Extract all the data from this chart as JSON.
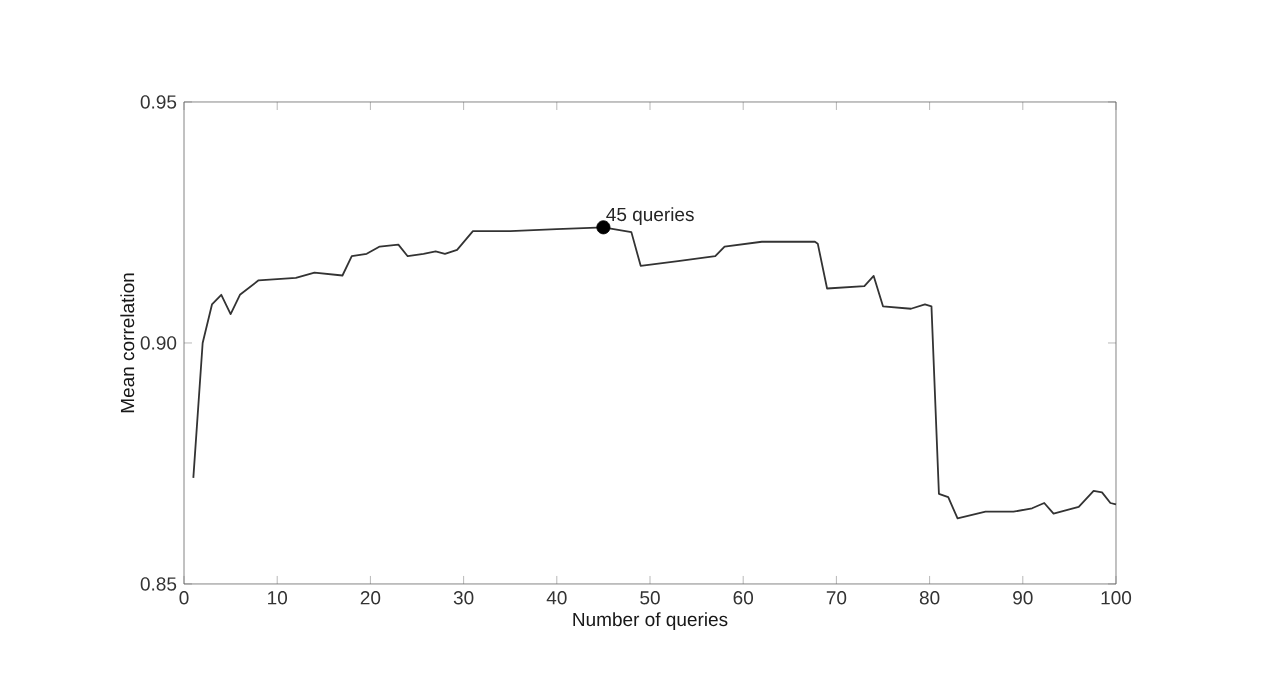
{
  "chart_data": {
    "type": "line",
    "xlabel": "Number of queries",
    "ylabel": "Mean correlation",
    "xlim": [
      0,
      100
    ],
    "xticks": [
      0,
      10,
      20,
      30,
      40,
      50,
      60,
      70,
      80,
      90,
      100
    ],
    "ylim": [
      0.85,
      0.95
    ],
    "yticks": [
      0.85,
      {
        "value": 0.9,
        "label": "0.90"
      },
      0.95
    ],
    "line_style": "solid",
    "annotations": [
      {
        "text": "45 queries",
        "x": 45,
        "y": 0.924
      }
    ],
    "series": [
      {
        "marker": "none",
        "color": "#333333",
        "x": [
          1,
          2,
          3,
          4,
          5,
          6,
          8,
          12,
          14,
          17,
          18,
          19.6,
          21,
          23,
          24,
          25.7,
          27,
          28,
          29.3,
          31,
          35,
          40,
          45,
          48,
          49,
          53,
          55,
          57,
          58,
          62,
          67.7,
          68,
          69,
          73,
          74,
          75,
          78,
          79.5,
          80.2,
          81,
          82,
          83,
          86,
          89,
          91,
          92.3,
          93.3,
          96,
          97.6,
          98.5,
          99.4,
          100
        ],
        "values": [
          0.872,
          0.9,
          0.908,
          0.91,
          0.906,
          0.91,
          0.913,
          0.9135,
          0.9146,
          0.914,
          0.918,
          0.9185,
          0.92,
          0.9204,
          0.918,
          0.9185,
          0.919,
          0.9185,
          0.9193,
          0.9232,
          0.9232,
          0.9236,
          0.924,
          0.923,
          0.916,
          0.917,
          0.9175,
          0.918,
          0.92,
          0.921,
          0.921,
          0.9206,
          0.9113,
          0.9118,
          0.9139,
          0.9076,
          0.9071,
          0.908,
          0.9076,
          0.8687,
          0.868,
          0.8636,
          0.865,
          0.865,
          0.8657,
          0.8668,
          0.8646,
          0.866,
          0.8693,
          0.869,
          0.8668,
          0.8665
        ]
      },
      {
        "type": "scatter",
        "marker": "circle",
        "color": "#000000",
        "x": [
          45
        ],
        "values": [
          0.924
        ]
      }
    ]
  }
}
